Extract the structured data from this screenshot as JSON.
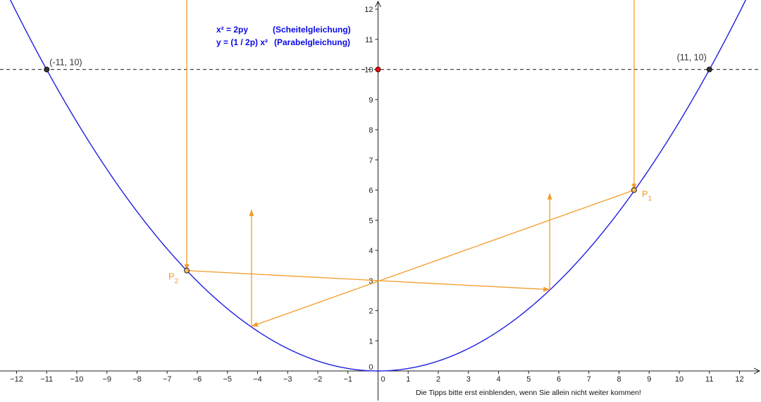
{
  "colors": {
    "parabola": "#2020e0",
    "orange": "#f39c27",
    "axis": "#222222",
    "dashed": "#444444",
    "focus_point": "#e01010",
    "point_fill": "#333333"
  },
  "axes": {
    "xlim": [
      -12.5,
      12.5
    ],
    "ylim": [
      0,
      12.3
    ],
    "x_ticks": [
      -12,
      -11,
      -10,
      -9,
      -8,
      -7,
      -6,
      -5,
      -4,
      -3,
      -2,
      -1,
      1,
      2,
      3,
      4,
      5,
      6,
      7,
      8,
      9,
      10,
      11,
      12
    ],
    "x_tick_labels": [
      "−12",
      "−11",
      "−10",
      "−9",
      "−8",
      "−7",
      "−6",
      "−5",
      "−4",
      "−3",
      "−2",
      "−1",
      "1",
      "2",
      "3",
      "4",
      "5",
      "6",
      "7",
      "8",
      "9",
      "10",
      "11",
      "12"
    ],
    "y_ticks": [
      1,
      2,
      3,
      4,
      5,
      6,
      7,
      8,
      9,
      10,
      11,
      12
    ],
    "y_tick_labels": [
      "1",
      "2",
      "3",
      "4",
      "5",
      "6",
      "7",
      "8",
      "9",
      "10",
      "11",
      "12"
    ],
    "origin_x_label": "0",
    "origin_y_label": "0"
  },
  "parabola": {
    "equation_coefficient": 0.0826,
    "x_range": [
      -12.5,
      12.5
    ]
  },
  "horizontal_line": {
    "y": 10
  },
  "points": {
    "left": {
      "x": -11,
      "y": 10,
      "label": "(-11, 10)"
    },
    "right": {
      "x": 11,
      "y": 10,
      "label": "(11, 10)"
    },
    "focus": {
      "x": 0,
      "y": 10
    },
    "P1": {
      "x": 8.5,
      "y": 6,
      "label": "P",
      "subscript": "1"
    },
    "P2": {
      "x": -6.35,
      "y": 3.33,
      "label": "P",
      "subscript": "2"
    },
    "F": {
      "x": 0,
      "y": 3
    }
  },
  "rays": {
    "incoming_P2": {
      "from": [
        -6.35,
        12.3
      ],
      "to": [
        -6.35,
        3.33
      ]
    },
    "incoming_P1": {
      "from": [
        8.5,
        12.3
      ],
      "to": [
        8.5,
        6
      ]
    },
    "P2_to_right": {
      "from": [
        -6.35,
        3.33
      ],
      "to": [
        5.7,
        2.7
      ]
    },
    "P1_to_left": {
      "from": [
        8.5,
        6
      ],
      "to": [
        -4.2,
        1.48
      ]
    },
    "up_left": {
      "from": [
        -4.2,
        1.48
      ],
      "to": [
        -4.2,
        5.35
      ]
    },
    "up_right": {
      "from": [
        5.7,
        2.7
      ],
      "to": [
        5.7,
        5.9
      ]
    }
  },
  "equations": {
    "line1_left": "x² = 2py",
    "line1_right": "(Scheitelgleichung)",
    "line2_left": "y = (1 / 2p) x²",
    "line2_right": "(Parabelgleichung)"
  },
  "footer_text": "Die Tipps bitte erst einblenden, wenn Sie allein nicht weiter kommen!"
}
